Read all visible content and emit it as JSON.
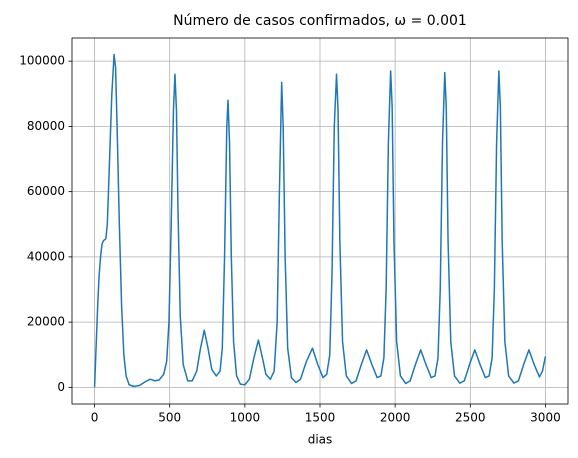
{
  "chart_data": {
    "type": "line",
    "title": "Número de casos confirmados, ω = 0.001",
    "xlabel": "dias",
    "x": [
      0,
      10,
      20,
      30,
      40,
      50,
      60,
      75,
      85,
      100,
      115,
      130,
      140,
      150,
      165,
      180,
      195,
      210,
      230,
      260,
      300,
      340,
      370,
      400,
      430,
      460,
      480,
      495,
      510,
      525,
      535,
      545,
      555,
      570,
      590,
      620,
      650,
      680,
      705,
      730,
      755,
      780,
      810,
      835,
      850,
      865,
      880,
      888,
      898,
      910,
      925,
      945,
      970,
      1000,
      1030,
      1060,
      1090,
      1115,
      1140,
      1170,
      1195,
      1215,
      1230,
      1245,
      1255,
      1268,
      1285,
      1310,
      1340,
      1370,
      1410,
      1450,
      1485,
      1520,
      1545,
      1565,
      1580,
      1595,
      1610,
      1620,
      1632,
      1650,
      1675,
      1710,
      1740,
      1775,
      1810,
      1845,
      1880,
      1905,
      1925,
      1940,
      1955,
      1970,
      1980,
      1992,
      2010,
      2035,
      2070,
      2100,
      2135,
      2170,
      2205,
      2240,
      2265,
      2285,
      2300,
      2315,
      2330,
      2340,
      2352,
      2370,
      2395,
      2430,
      2460,
      2495,
      2530,
      2565,
      2600,
      2625,
      2645,
      2660,
      2675,
      2690,
      2700,
      2712,
      2730,
      2755,
      2790,
      2820,
      2855,
      2890,
      2925,
      2960,
      2980,
      3000
    ],
    "series": [
      {
        "name": "casos",
        "color": "#1f77b4",
        "values": [
          0,
          12000,
          24000,
          34000,
          40000,
          44000,
          45000,
          45500,
          50000,
          70000,
          90000,
          102000,
          98000,
          80000,
          50000,
          25000,
          10000,
          3500,
          800,
          300,
          600,
          1800,
          2500,
          2000,
          2300,
          4000,
          8000,
          20000,
          50000,
          85000,
          96000,
          85000,
          55000,
          22000,
          7000,
          2000,
          2000,
          5000,
          12000,
          17500,
          12000,
          5500,
          3500,
          5000,
          12000,
          40000,
          80000,
          88000,
          75000,
          40000,
          14000,
          3500,
          1000,
          800,
          2500,
          9000,
          14500,
          9500,
          4000,
          2500,
          5000,
          20000,
          60000,
          93500,
          80000,
          40000,
          12000,
          3000,
          1500,
          2500,
          8000,
          12000,
          7000,
          3000,
          4000,
          10000,
          35000,
          80000,
          96000,
          85000,
          45000,
          14000,
          3500,
          1200,
          2000,
          7000,
          11500,
          7000,
          3000,
          3500,
          9000,
          30000,
          75000,
          97000,
          86000,
          45000,
          14000,
          3500,
          1200,
          2000,
          7000,
          11500,
          7000,
          3000,
          3500,
          9000,
          30000,
          75000,
          96500,
          86000,
          45000,
          14000,
          3500,
          1300,
          2000,
          7000,
          11500,
          7000,
          3000,
          3500,
          9000,
          30000,
          75000,
          97000,
          86000,
          45000,
          14000,
          3500,
          1300,
          2000,
          7000,
          11500,
          7000,
          3200,
          5000,
          9500
        ]
      }
    ],
    "xlim": [
      -150,
      3150
    ],
    "xticks": [
      0,
      500,
      1000,
      1500,
      2000,
      2500,
      3000
    ],
    "ylim": [
      -5100,
      107100
    ],
    "yticks": [
      0,
      20000,
      40000,
      60000,
      80000,
      100000
    ],
    "grid": true
  }
}
